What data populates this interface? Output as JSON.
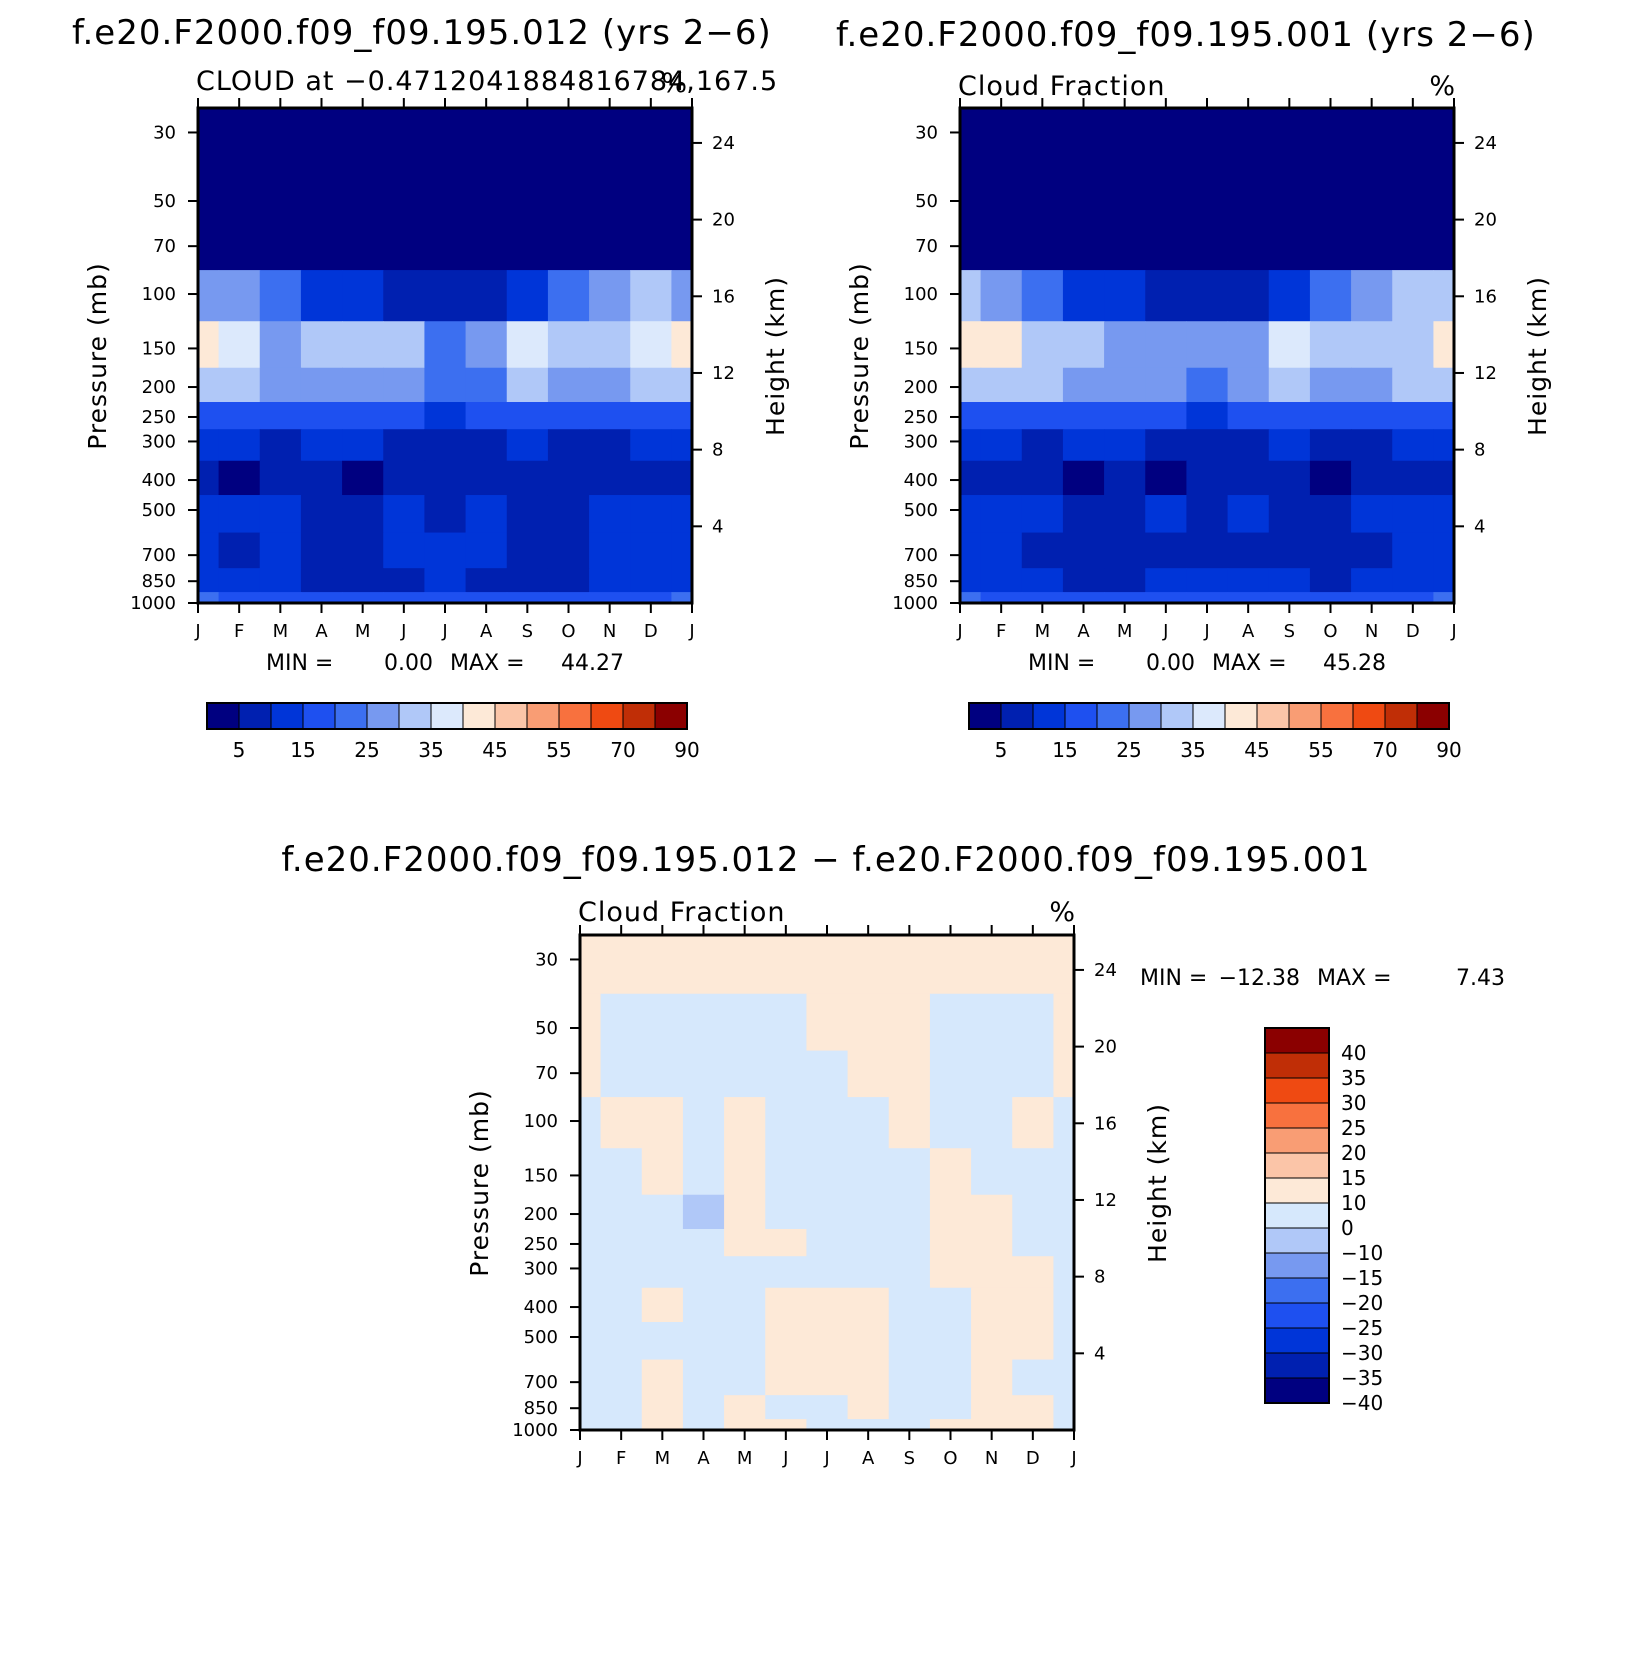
{
  "figure": {
    "overall": "Three-panel NCL figure: two annual-cycle pressure-height cloud fraction sections and their difference"
  },
  "colors": {
    "abs_palette": [
      "#000080",
      "#0020b0",
      "#0035d8",
      "#1e50f0",
      "#3c6ff0",
      "#7799f0",
      "#b0c8f8",
      "#dce9fc",
      "#fde9d7",
      "#fbc5a8",
      "#f99d74",
      "#f8713e",
      "#ef4a12",
      "#c02e06",
      "#8b0000"
    ],
    "diff_palette": [
      "#000080",
      "#0020b0",
      "#0035d8",
      "#1e50f0",
      "#3c6ff0",
      "#7799f0",
      "#b0c8f8",
      "#d6e8fc",
      "#fde9d7",
      "#fbc5a8",
      "#f99d74",
      "#f8713e",
      "#ef4a12",
      "#c02e06",
      "#8b0000"
    ]
  },
  "chart_data": [
    {
      "type": "heatmap",
      "id": "panel1",
      "title": "f.e20.F2000.f09_f09.195.012 (yrs 2−6)",
      "subtitle_left": "CLOUD at −0.4712041884816784,167.5",
      "subtitle_right": "%",
      "xlabel": "",
      "ylabel": "Pressure (mb)",
      "ylabel_right": "Height (km)",
      "x_ticks": [
        "J",
        "F",
        "M",
        "A",
        "M",
        "J",
        "J",
        "A",
        "S",
        "O",
        "N",
        "D",
        "J"
      ],
      "y_ticks": [
        "30",
        "50",
        "70",
        "100",
        "150",
        "200",
        "250",
        "300",
        "400",
        "500",
        "700",
        "850",
        "1000"
      ],
      "y_ticks_right": [
        "24",
        "20",
        "16",
        "12",
        "8",
        "4"
      ],
      "ylim": [
        1000,
        25
      ],
      "x": [
        0,
        1,
        2,
        3,
        4,
        5,
        6,
        7,
        8,
        9,
        10,
        11,
        12
      ],
      "levels": [
        30,
        50,
        70,
        100,
        150,
        200,
        250,
        300,
        400,
        500,
        700,
        850,
        1000
      ],
      "values": [
        [
          0,
          0,
          0,
          0,
          0,
          0,
          0,
          0,
          0,
          0,
          0,
          0,
          0
        ],
        [
          0,
          0,
          0,
          0,
          0,
          0,
          0,
          0,
          0,
          0,
          0,
          0,
          0
        ],
        [
          2,
          1,
          1,
          0,
          0,
          0,
          0,
          0,
          0,
          0,
          0,
          1,
          2
        ],
        [
          28,
          25,
          20,
          12,
          10,
          6,
          6,
          8,
          14,
          20,
          26,
          30,
          28
        ],
        [
          42,
          36,
          28,
          30,
          32,
          34,
          20,
          28,
          36,
          30,
          32,
          36,
          42
        ],
        [
          30,
          30,
          27,
          27,
          28,
          28,
          20,
          24,
          30,
          26,
          27,
          30,
          30
        ],
        [
          18,
          17,
          16,
          16,
          16,
          16,
          14,
          15,
          16,
          15,
          16,
          17,
          18
        ],
        [
          10,
          10,
          9,
          10,
          10,
          9,
          9,
          9,
          10,
          9,
          9,
          10,
          10
        ],
        [
          6,
          3,
          6,
          7,
          2,
          5,
          6,
          6,
          5,
          6,
          6,
          6,
          6
        ],
        [
          12,
          11,
          10,
          6,
          6,
          10,
          8,
          11,
          8,
          8,
          11,
          11,
          12
        ],
        [
          12,
          7,
          10,
          8,
          6,
          10,
          12,
          10,
          8,
          6,
          10,
          12,
          12
        ],
        [
          13,
          14,
          10,
          9,
          8,
          9,
          10,
          9,
          9,
          9,
          11,
          13,
          13
        ],
        [
          20,
          19,
          18,
          18,
          18,
          18,
          18,
          18,
          18,
          18,
          18,
          19,
          20
        ]
      ],
      "contour_levels": [
        5,
        10,
        15,
        20,
        25,
        30,
        35,
        40,
        45,
        50,
        55,
        60,
        70,
        80,
        90
      ],
      "colorbar_labels": [
        "5",
        "15",
        "25",
        "35",
        "45",
        "55",
        "70",
        "90"
      ],
      "min_label": "MIN =",
      "min_value": "0.00",
      "max_label": "MAX =",
      "max_value": "44.27"
    },
    {
      "type": "heatmap",
      "id": "panel2",
      "title": "f.e20.F2000.f09_f09.195.001 (yrs 2−6)",
      "subtitle_left": "Cloud Fraction",
      "subtitle_right": "%",
      "xlabel": "",
      "ylabel": "Pressure (mb)",
      "ylabel_right": "Height (km)",
      "x_ticks": [
        "J",
        "F",
        "M",
        "A",
        "M",
        "J",
        "J",
        "A",
        "S",
        "O",
        "N",
        "D",
        "J"
      ],
      "y_ticks": [
        "30",
        "50",
        "70",
        "100",
        "150",
        "200",
        "250",
        "300",
        "400",
        "500",
        "700",
        "850",
        "1000"
      ],
      "y_ticks_right": [
        "24",
        "20",
        "16",
        "12",
        "8",
        "4"
      ],
      "ylim": [
        1000,
        25
      ],
      "x": [
        0,
        1,
        2,
        3,
        4,
        5,
        6,
        7,
        8,
        9,
        10,
        11,
        12
      ],
      "levels": [
        30,
        50,
        70,
        100,
        150,
        200,
        250,
        300,
        400,
        500,
        700,
        850,
        1000
      ],
      "values": [
        [
          0,
          0,
          0,
          0,
          0,
          0,
          0,
          0,
          0,
          0,
          0,
          0,
          0
        ],
        [
          0,
          0,
          0,
          0,
          0,
          0,
          0,
          0,
          0,
          0,
          0,
          0,
          0
        ],
        [
          2,
          1,
          1,
          0,
          0,
          0,
          0,
          0,
          0,
          0,
          0,
          1,
          2
        ],
        [
          30,
          26,
          20,
          14,
          10,
          6,
          6,
          8,
          14,
          20,
          26,
          30,
          30
        ],
        [
          42,
          40,
          34,
          30,
          28,
          28,
          27,
          28,
          36,
          32,
          30,
          34,
          42
        ],
        [
          30,
          30,
          30,
          26,
          26,
          26,
          24,
          26,
          33,
          26,
          26,
          30,
          30
        ],
        [
          18,
          17,
          16,
          16,
          16,
          16,
          14,
          15,
          16,
          15,
          16,
          17,
          18
        ],
        [
          10,
          10,
          9,
          10,
          10,
          9,
          9,
          9,
          10,
          9,
          9,
          10,
          10
        ],
        [
          6,
          6,
          6,
          3,
          6,
          3,
          6,
          6,
          6,
          3,
          6,
          6,
          6
        ],
        [
          12,
          11,
          10,
          8,
          6,
          10,
          8,
          10,
          8,
          8,
          10,
          11,
          12
        ],
        [
          12,
          10,
          8,
          7,
          6,
          6,
          8,
          8,
          6,
          6,
          8,
          10,
          12
        ],
        [
          13,
          13,
          10,
          9,
          8,
          10,
          12,
          12,
          10,
          9,
          11,
          13,
          13
        ],
        [
          20,
          19,
          18,
          18,
          18,
          18,
          18,
          18,
          18,
          18,
          18,
          19,
          20
        ]
      ],
      "contour_levels": [
        5,
        10,
        15,
        20,
        25,
        30,
        35,
        40,
        45,
        50,
        55,
        60,
        70,
        80,
        90
      ],
      "colorbar_labels": [
        "5",
        "15",
        "25",
        "35",
        "45",
        "55",
        "70",
        "90"
      ],
      "min_label": "MIN =",
      "min_value": "0.00",
      "max_label": "MAX =",
      "max_value": "45.28"
    },
    {
      "type": "heatmap",
      "id": "panel3",
      "title": "f.e20.F2000.f09_f09.195.012 − f.e20.F2000.f09_f09.195.001",
      "subtitle_left": "Cloud Fraction",
      "subtitle_right": "%",
      "xlabel": "",
      "ylabel": "Pressure (mb)",
      "ylabel_right": "Height (km)",
      "x_ticks": [
        "J",
        "F",
        "M",
        "A",
        "M",
        "J",
        "J",
        "A",
        "S",
        "O",
        "N",
        "D",
        "J"
      ],
      "y_ticks": [
        "30",
        "50",
        "70",
        "100",
        "150",
        "200",
        "250",
        "300",
        "400",
        "500",
        "700",
        "850",
        "1000"
      ],
      "y_ticks_right": [
        "24",
        "20",
        "16",
        "12",
        "8",
        "4"
      ],
      "ylim": [
        1000,
        25
      ],
      "x": [
        0,
        1,
        2,
        3,
        4,
        5,
        6,
        7,
        8,
        9,
        10,
        11,
        12
      ],
      "levels": [
        30,
        50,
        70,
        100,
        150,
        200,
        250,
        300,
        400,
        500,
        700,
        850,
        1000
      ],
      "values": [
        [
          0.1,
          0.1,
          0.1,
          0.1,
          0.1,
          0.1,
          0.1,
          0.1,
          0.1,
          0.1,
          0.1,
          0.1,
          0.1
        ],
        [
          0.1,
          -0.1,
          -0.1,
          -0.1,
          -0.1,
          -0.1,
          0.1,
          0.1,
          0.1,
          -0.1,
          -0.1,
          -0.1,
          0.1
        ],
        [
          0.3,
          -0.3,
          -0.3,
          -0.3,
          -0.3,
          -0.3,
          -0.3,
          0.3,
          0.3,
          -0.3,
          -0.3,
          -0.3,
          0.3
        ],
        [
          -0.5,
          0.5,
          0.2,
          -0.4,
          1.0,
          -0.5,
          -0.5,
          -1.0,
          1.0,
          -0.5,
          -0.5,
          0.5,
          -0.5
        ],
        [
          -2,
          -3,
          1,
          -4,
          3,
          -3,
          -3,
          -2,
          -1,
          2,
          -3,
          -2,
          -2
        ],
        [
          -2,
          -2,
          -3,
          -11,
          3,
          -2,
          -3,
          -3,
          -3,
          3,
          2,
          -1,
          -2
        ],
        [
          -1,
          -2,
          -1,
          -2,
          2,
          2,
          -1,
          -1,
          -1,
          2,
          1,
          -1,
          -1
        ],
        [
          -1,
          -1,
          -1,
          -1,
          -1,
          -1,
          -1,
          -1,
          -1,
          1,
          1,
          1,
          -1
        ],
        [
          -1,
          -1,
          1,
          -1,
          -1,
          1,
          1,
          1,
          -1,
          -1,
          1,
          1,
          -1
        ],
        [
          -1,
          -1,
          -1,
          -1,
          -1,
          1,
          1,
          1,
          -1,
          -1,
          1,
          1,
          -1
        ],
        [
          -1,
          -1,
          1,
          -1,
          -1,
          1,
          1,
          1,
          -1,
          -1,
          1,
          -1,
          -1
        ],
        [
          -1,
          -1,
          1,
          -1,
          1,
          -1,
          -1,
          1,
          -1,
          -1,
          1,
          1,
          -1
        ],
        [
          -1,
          -1,
          1,
          -1,
          1,
          1,
          -1,
          -1,
          -1,
          1,
          1,
          1,
          -1
        ]
      ],
      "contour_levels": [
        -40,
        -35,
        -30,
        -25,
        -20,
        -15,
        -10,
        0,
        10,
        15,
        20,
        25,
        30,
        35,
        40
      ],
      "colorbar_labels": [
        "40",
        "35",
        "30",
        "25",
        "20",
        "15",
        "10",
        "0",
        "−10",
        "−15",
        "−20",
        "−25",
        "−30",
        "−35",
        "−40"
      ],
      "min_label": "MIN =",
      "min_value": "−12.38",
      "max_label": "MAX =",
      "max_value": "7.43"
    }
  ]
}
